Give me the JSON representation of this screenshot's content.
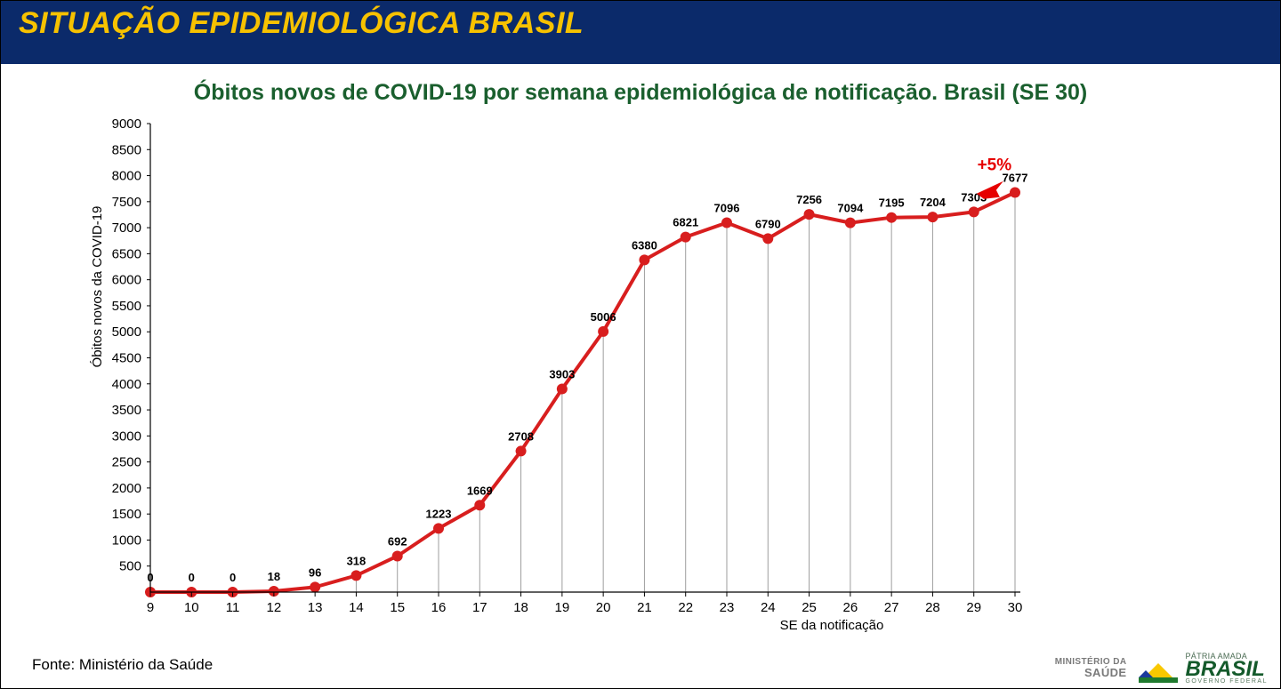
{
  "header": {
    "title": "SITUAÇÃO EPIDEMIOLÓGICA BRASIL",
    "title_color": "#f7c200",
    "title_bg": "#0b2a6a",
    "title_fontsize": 34,
    "separator_color": "#0b2a6a"
  },
  "subtitle": {
    "text": "Óbitos novos de COVID-19 por semana epidemiológica de notificação. Brasil (SE 30)",
    "color": "#1a5f2e",
    "fontsize": 25
  },
  "chart": {
    "type": "line",
    "x_values": [
      9,
      10,
      11,
      12,
      13,
      14,
      15,
      16,
      17,
      18,
      19,
      20,
      21,
      22,
      23,
      24,
      25,
      26,
      27,
      28,
      29,
      30
    ],
    "y_values": [
      0,
      0,
      0,
      18,
      96,
      318,
      692,
      1223,
      1669,
      2708,
      3903,
      5006,
      6380,
      6821,
      7096,
      6790,
      7256,
      7094,
      7195,
      7204,
      7303,
      7677
    ],
    "datalabels": [
      "0",
      "0",
      "0",
      "18",
      "96",
      "318",
      "692",
      "1223",
      "1669",
      "2708",
      "3903",
      "5006",
      "6380",
      "6821",
      "7096",
      "6790",
      "7256",
      "7094",
      "7195",
      "7204",
      "7303",
      "7677"
    ],
    "datalabel_fontsize": 13,
    "datalabel_color": "#000000",
    "line_color": "#d81e1e",
    "line_width": 4,
    "marker_color": "#d81e1e",
    "marker_radius": 6,
    "droplines_color": "#9e9e9e",
    "droplines_width": 1,
    "axis_color": "#000000",
    "axis_width": 1.2,
    "tick_fontsize": 15,
    "ylim": [
      0,
      9000
    ],
    "ytick_step": 500,
    "xlabel": "SE da notificação",
    "ylabel": "Óbitos novos da COVID-19",
    "label_fontsize": 15,
    "background_color": "#ffffff",
    "annotation": {
      "text": "+5%",
      "color": "#e60000",
      "fontsize": 19,
      "x_between": [
        29,
        30
      ],
      "y_value": 8100
    }
  },
  "footer": {
    "source": "Fonte: Ministério da Saúde",
    "ministry_line1": "MINISTÉRIO DA",
    "ministry_line2": "SAÚDE",
    "logo_small": "PÁTRIA AMADA",
    "logo_big": "BRASIL",
    "logo_gov": "GOVERNO FEDERAL",
    "logo_green": "#1f7a2e",
    "logo_yellow": "#f9c800",
    "logo_blue": "#1b3a9c"
  }
}
